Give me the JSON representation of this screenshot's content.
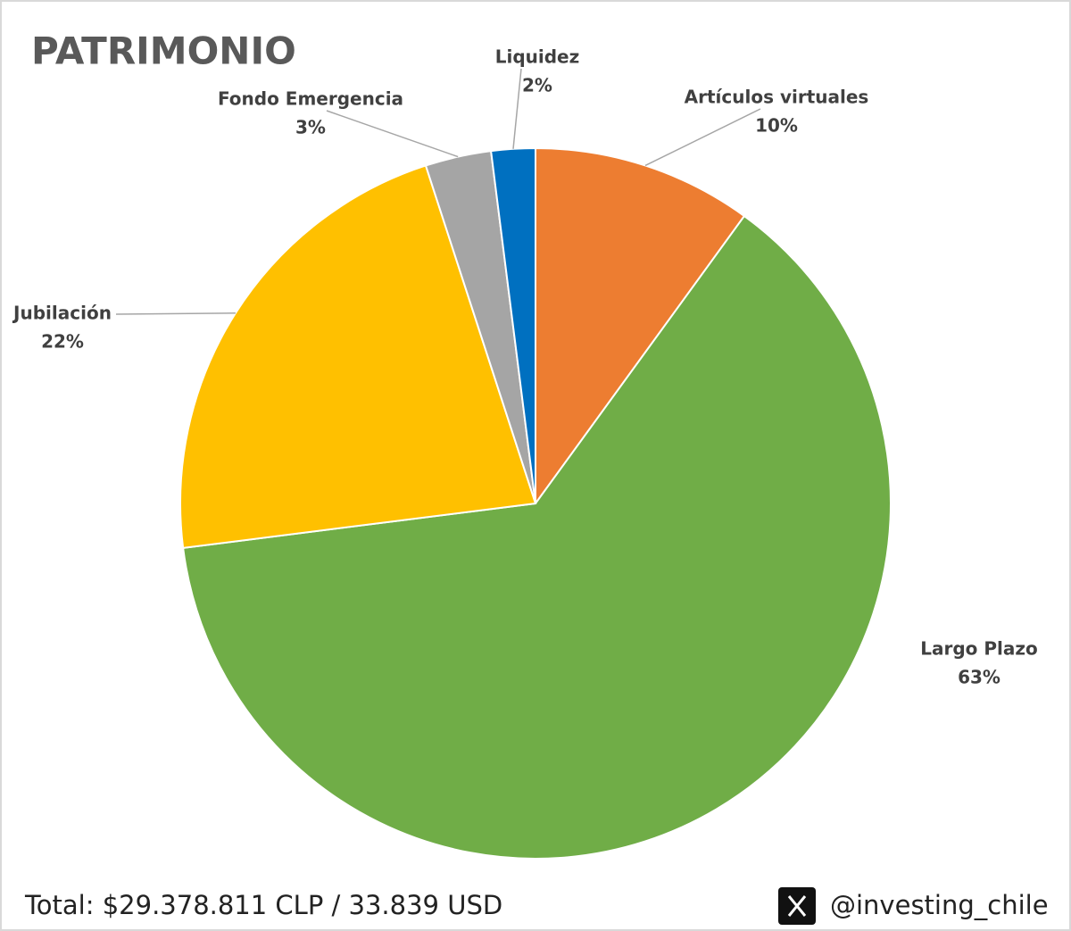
{
  "chart_data": {
    "type": "pie",
    "title": "PATRIMONIO",
    "categories": [
      "Artículos virtuales",
      "Largo Plazo",
      "Jubilación",
      "Fondo Emergencia",
      "Liquidez"
    ],
    "values": [
      10,
      63,
      22,
      3,
      2
    ],
    "value_labels": [
      "10%",
      "63%",
      "22%",
      "3%",
      "2%"
    ],
    "colors": [
      "#ed7d31",
      "#70ad47",
      "#ffc000",
      "#a5a5a5",
      "#0070c0"
    ]
  },
  "footer": {
    "total": "Total: $29.378.811 CLP / 33.839 USD",
    "handle": "@investing_chile"
  }
}
